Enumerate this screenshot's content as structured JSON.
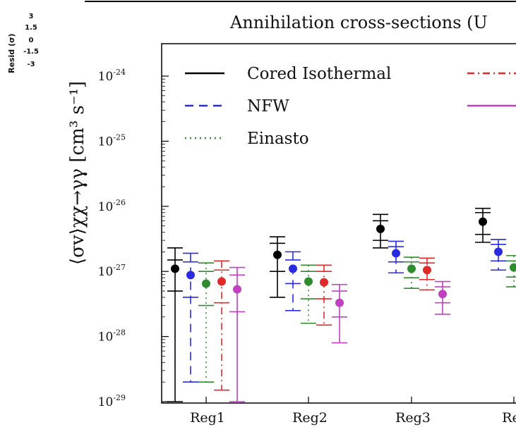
{
  "chart_data": {
    "type": "scatter",
    "title": "Annihilation cross-sections (U",
    "ylabel": "⟨σv⟩χχ→γγ [cm³ s⁻¹]",
    "yscale": "log",
    "ylim_exp": [
      -29,
      -24
    ],
    "ytick_base": "10",
    "ytick_exponents": [
      "-24",
      "-25",
      "-26",
      "-27",
      "-28",
      "-29"
    ],
    "categories": [
      "Reg1",
      "Reg2",
      "Reg3",
      "Reg"
    ],
    "resid_panel": {
      "label": "Resid (σ)",
      "ticks": [
        "3",
        "1.5",
        "0",
        "-1.5",
        "-3"
      ]
    },
    "legend": [
      {
        "label": "Cored Isothermal",
        "color": "#000000",
        "dash": "solid"
      },
      {
        "label": "NFW",
        "color": "#2a2ae0",
        "dash": "dash"
      },
      {
        "label": "Einasto",
        "color": "#2e8b2e",
        "dash": "dot"
      },
      {
        "label": "",
        "color": "#e02a2a",
        "dash": "dashdot"
      },
      {
        "label": "",
        "color": "#c040c0",
        "dash": "solid"
      }
    ],
    "series": [
      {
        "color": "#000000",
        "dash": "solid",
        "points": [
          {
            "cat": 0,
            "y": 1.1e-27,
            "inner": [
              5e-28,
              1.5e-27
            ],
            "outer": [
              1e-29,
              2.3e-27
            ]
          },
          {
            "cat": 1,
            "y": 1.8e-27,
            "inner": [
              1e-27,
              2.7e-27
            ],
            "outer": [
              4e-28,
              3.4e-27
            ]
          },
          {
            "cat": 2,
            "y": 4.5e-27,
            "inner": [
              3e-27,
              6e-27
            ],
            "outer": [
              2.3e-27,
              7.5e-27
            ]
          },
          {
            "cat": 3,
            "y": 5.8e-27,
            "inner": [
              3.7e-27,
              8e-27
            ],
            "outer": [
              2.8e-27,
              9.3e-27
            ]
          }
        ]
      },
      {
        "color": "#2a2ae0",
        "dash": "dash",
        "points": [
          {
            "cat": 0,
            "y": 8.8e-28,
            "inner": [
              4e-28,
              1.4e-27
            ],
            "outer": [
              2e-29,
              1.9e-27
            ]
          },
          {
            "cat": 1,
            "y": 1.1e-27,
            "inner": [
              6.5e-28,
              1.5e-27
            ],
            "outer": [
              2.5e-28,
              2e-27
            ]
          },
          {
            "cat": 2,
            "y": 1.9e-27,
            "inner": [
              1.4e-27,
              2.4e-27
            ],
            "outer": [
              9.5e-28,
              2.9e-27
            ]
          },
          {
            "cat": 3,
            "y": 2e-27,
            "inner": [
              1.45e-27,
              2.6e-27
            ],
            "outer": [
              1.05e-27,
              3.1e-27
            ]
          }
        ]
      },
      {
        "color": "#2e8b2e",
        "dash": "dot",
        "points": [
          {
            "cat": 0,
            "y": 6.5e-28,
            "inner": [
              3e-28,
              1e-27
            ],
            "outer": [
              2e-29,
              1.35e-27
            ]
          },
          {
            "cat": 1,
            "y": 7e-28,
            "inner": [
              3.8e-28,
              1e-27
            ],
            "outer": [
              1.6e-28,
              1.25e-27
            ]
          },
          {
            "cat": 2,
            "y": 1.1e-27,
            "inner": [
              8e-28,
              1.4e-27
            ],
            "outer": [
              5.5e-28,
              1.65e-27
            ]
          },
          {
            "cat": 3,
            "y": 1.15e-27,
            "inner": [
              8.2e-28,
              1.45e-27
            ],
            "outer": [
              5.8e-28,
              1.75e-27
            ]
          }
        ]
      },
      {
        "color": "#e02a2a",
        "dash": "dashdot",
        "points": [
          {
            "cat": 0,
            "y": 7e-28,
            "inner": [
              3.3e-28,
              1.05e-27
            ],
            "outer": [
              1.5e-29,
              1.45e-27
            ]
          },
          {
            "cat": 1,
            "y": 6.8e-28,
            "inner": [
              3.8e-28,
              1e-27
            ],
            "outer": [
              1.5e-28,
              1.25e-27
            ]
          },
          {
            "cat": 2,
            "y": 1.05e-27,
            "inner": [
              7.5e-28,
              1.35e-27
            ],
            "outer": [
              5.2e-28,
              1.6e-27
            ]
          },
          {
            "cat": 3,
            "y": 1.1e-27,
            "inner": [
              7.8e-28,
              1.4e-27
            ],
            "outer": [
              5.5e-28,
              1.7e-27
            ]
          }
        ]
      },
      {
        "color": "#c040c0",
        "dash": "solid",
        "points": [
          {
            "cat": 0,
            "y": 5.3e-28,
            "inner": [
              2.4e-28,
              8.8e-28
            ],
            "outer": [
              1e-29,
              1.15e-27
            ]
          },
          {
            "cat": 1,
            "y": 3.3e-28,
            "inner": [
              2e-28,
              5e-28
            ],
            "outer": [
              8e-29,
              6.3e-28
            ]
          },
          {
            "cat": 2,
            "y": 4.5e-28,
            "inner": [
              3.3e-28,
              5.8e-28
            ],
            "outer": [
              2.2e-28,
              7e-28
            ]
          }
        ]
      }
    ]
  }
}
